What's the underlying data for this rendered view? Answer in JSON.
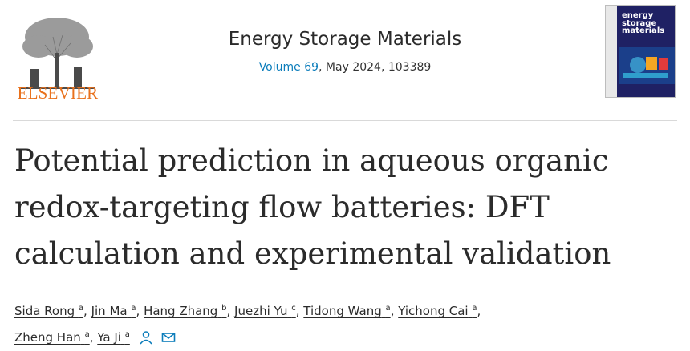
{
  "publisher": {
    "name": "ELSEVIER",
    "brand_color": "#e9711c"
  },
  "journal": {
    "name": "Energy Storage Materials",
    "volume_label": "Volume 69",
    "issue_rest": ", May 2024, 103389",
    "link_color": "#0c7dbb"
  },
  "cover": {
    "title_line1": "energy",
    "title_line2": "storage",
    "title_line3": "materials"
  },
  "article": {
    "title_line1": "Potential prediction in aqueous organic",
    "title_line2": "redox-targeting flow batteries: DFT",
    "title_line3": "calculation and experimental validation"
  },
  "authors": [
    {
      "name": "Sida Rong",
      "aff": "a"
    },
    {
      "name": "Jin Ma",
      "aff": "a"
    },
    {
      "name": "Hang Zhang",
      "aff": "b"
    },
    {
      "name": "Juezhi Yu",
      "aff": "c"
    },
    {
      "name": "Tidong Wang",
      "aff": "a"
    },
    {
      "name": "Yichong Cai",
      "aff": "a"
    },
    {
      "name": "Zheng Han",
      "aff": "a"
    },
    {
      "name": "Ya Ji",
      "aff": "a"
    }
  ],
  "icons": {
    "corresponding": "person-icon",
    "email": "envelope-icon"
  }
}
